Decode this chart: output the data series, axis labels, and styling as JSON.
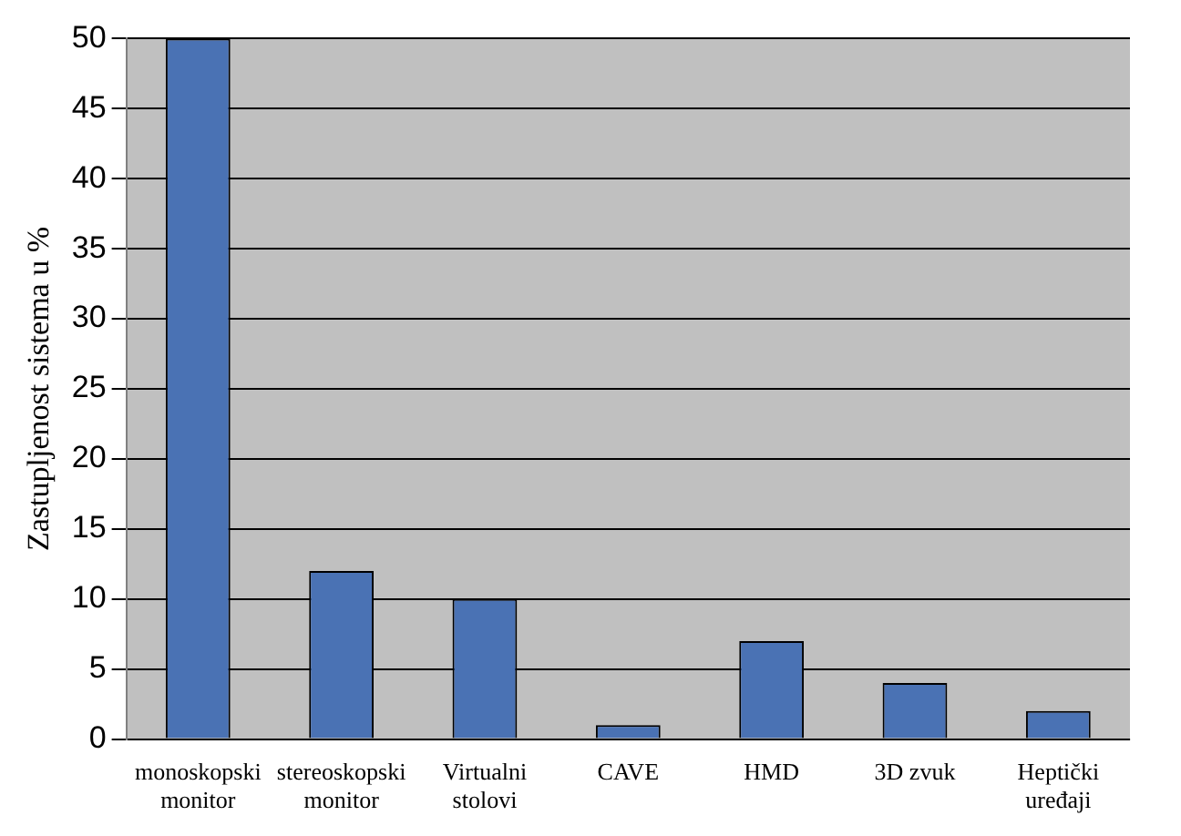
{
  "chart_data": {
    "type": "bar",
    "ylabel": "Zastupljenost sistema u %",
    "categories": [
      "monoskopski\nmonitor",
      "stereoskopski\nmonitor",
      "Virtualni\nstolovi",
      "CAVE",
      "HMD",
      "3D zvuk",
      "Heptički\nuređaji"
    ],
    "values": [
      50,
      12,
      10,
      1,
      7,
      4,
      2
    ],
    "color": "#4a72b4",
    "ylim": [
      0,
      50
    ],
    "yticks": [
      0,
      5,
      10,
      15,
      20,
      25,
      30,
      35,
      40,
      45,
      50
    ],
    "grid": "y",
    "legend": false
  }
}
